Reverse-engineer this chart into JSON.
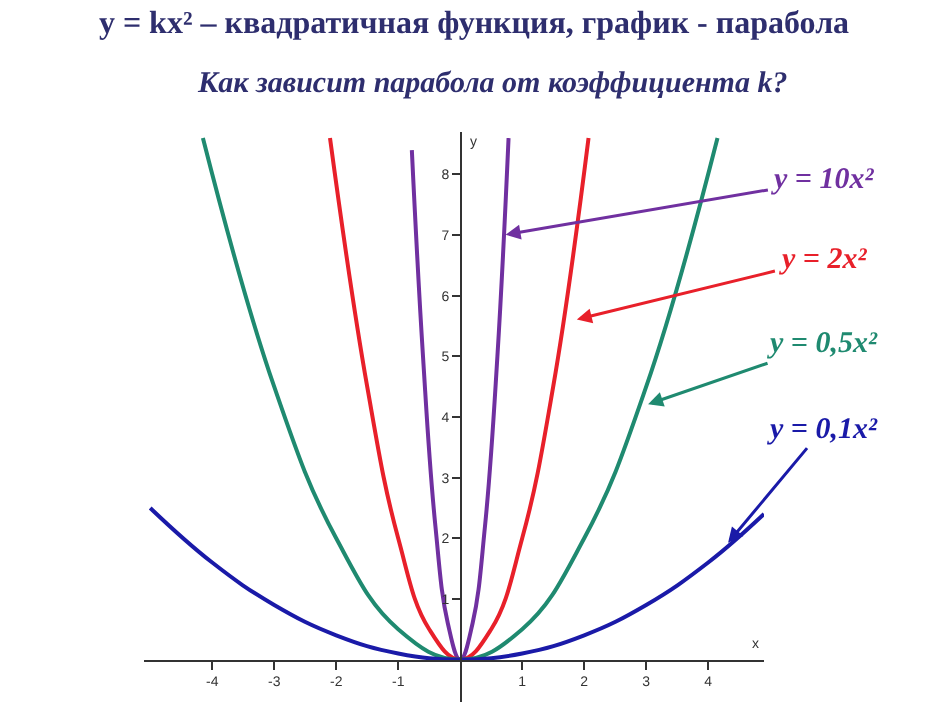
{
  "chart_data": {
    "type": "line",
    "title": "y = kx² – квадратичная функция, график - парабола",
    "subtitle": "Как зависит парабола от коэффициента k?",
    "xlabel": "x",
    "ylabel": "y",
    "series": [
      {
        "color": "#7030a0",
        "x": [
          -0.78,
          -0.6,
          -0.4,
          -0.2,
          0,
          0.2,
          0.4,
          0.6,
          0.78
        ],
        "values": [
          8.4,
          5,
          2.2,
          0.6,
          0,
          0.6,
          2.2,
          5,
          8.6
        ]
      },
      {
        "color": "#e8202a",
        "x": [
          -2.1,
          -1.5,
          -1,
          -0.5,
          0,
          0.5,
          1,
          1.5,
          2.07
        ],
        "values": [
          8.6,
          4.5,
          2,
          0.5,
          0,
          0.5,
          2,
          4.5,
          8.6
        ]
      },
      {
        "color": "#1f8a70",
        "x": [
          -4.15,
          -3,
          -2,
          -1,
          0,
          1,
          2,
          3,
          4.15
        ],
        "values": [
          8.6,
          4.5,
          2,
          0.5,
          0,
          0.5,
          2,
          4.5,
          8.6
        ]
      },
      {
        "color": "#1a1aa8",
        "x": [
          -5,
          -4,
          -3,
          -2,
          -1,
          0,
          1,
          2,
          3,
          4,
          4.9
        ],
        "values": [
          2.5,
          1.6,
          0.9,
          0.4,
          0.1,
          0,
          0.1,
          0.4,
          0.9,
          1.6,
          2.4
        ]
      }
    ],
    "annotations": [
      {
        "text": "y = 10x²",
        "x": 0.7,
        "y": 7
      },
      {
        "text": "y = 2x²",
        "x": 1.85,
        "y": 5.6
      },
      {
        "text": "y = 0,5x²",
        "x": 3.0,
        "y": 4.2
      },
      {
        "text": "y = 0,1x²",
        "x": 4.3,
        "y": 1.9
      }
    ],
    "xlim": [
      -5.1,
      4.9
    ],
    "ylim": [
      -0.7,
      8.7
    ],
    "xticks": [
      -4,
      -3,
      -2,
      -1,
      1,
      2,
      3,
      4
    ],
    "yticks": [
      1,
      2,
      3,
      4,
      5,
      6,
      7,
      8
    ],
    "grid": false,
    "marker": "none",
    "line_style": "solid"
  }
}
